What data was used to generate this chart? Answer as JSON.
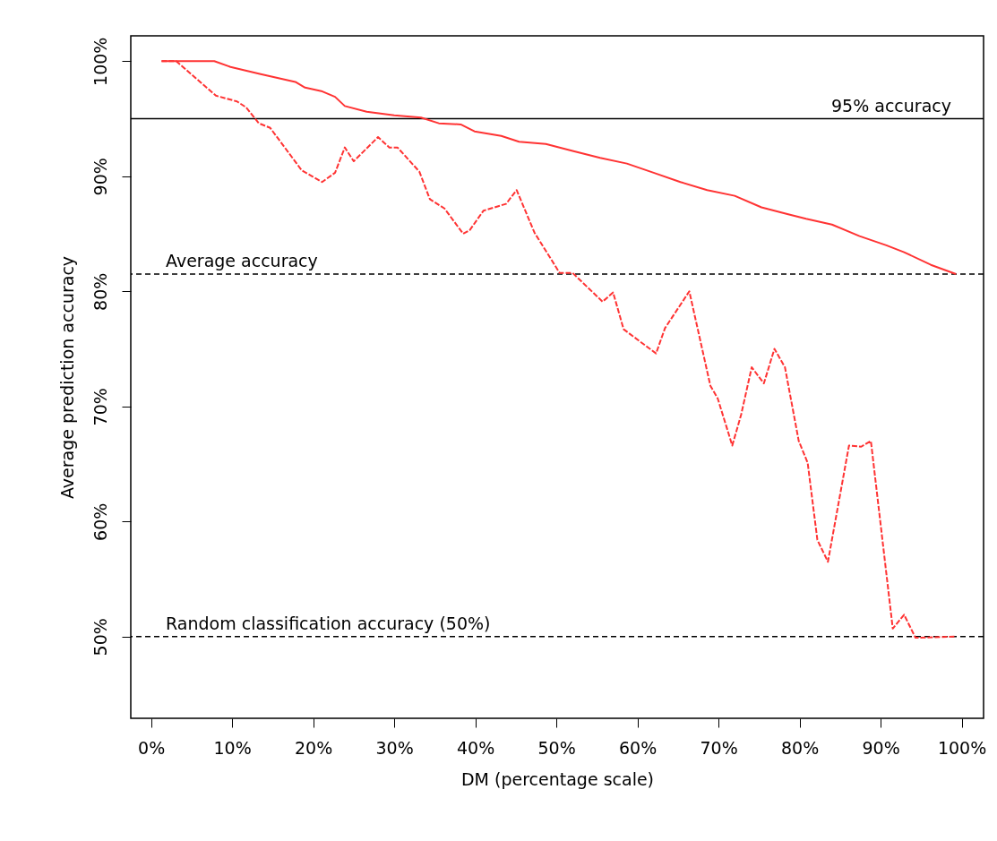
{
  "chart_data": {
    "type": "line",
    "xlabel": "DM (percentage scale)",
    "ylabel": "Average prediction accuracy",
    "xlim": [
      -2.5,
      102.7
    ],
    "ylim": [
      42.9,
      102.2
    ],
    "xticks": [
      {
        "value": 0,
        "label": "0%"
      },
      {
        "value": 10,
        "label": "10%"
      },
      {
        "value": 20,
        "label": "20%"
      },
      {
        "value": 30,
        "label": "30%"
      },
      {
        "value": 40,
        "label": "40%"
      },
      {
        "value": 50,
        "label": "50%"
      },
      {
        "value": 60,
        "label": "60%"
      },
      {
        "value": 70,
        "label": "70%"
      },
      {
        "value": 80,
        "label": "80%"
      },
      {
        "value": 90,
        "label": "90%"
      },
      {
        "value": 100,
        "label": "100%"
      }
    ],
    "yticks": [
      {
        "value": 50,
        "label": "50%"
      },
      {
        "value": 60,
        "label": "60%"
      },
      {
        "value": 70,
        "label": "70%"
      },
      {
        "value": 80,
        "label": "80%"
      },
      {
        "value": 90,
        "label": "90%"
      },
      {
        "value": 100,
        "label": "100%"
      }
    ],
    "marker": "none",
    "series": [
      {
        "color": "#ff3333",
        "line_style": "solid",
        "x": [
          1.3,
          7.8,
          9.8,
          13.4,
          17.8,
          19,
          21,
          22.7,
          23.9,
          26.6,
          30,
          33.3,
          35.5,
          38.2,
          39.9,
          43.2,
          45.4,
          48.7,
          52,
          55.4,
          58.7,
          62,
          65.3,
          68.6,
          72,
          75.3,
          78.6,
          80.8,
          84,
          87.4,
          90.7,
          92.9,
          96.2,
          99.3
        ],
        "values": [
          100,
          100,
          99.5,
          98.9,
          98.2,
          97.7,
          97.4,
          96.9,
          96.1,
          95.6,
          95.3,
          95.1,
          94.6,
          94.5,
          93.9,
          93.5,
          93,
          92.8,
          92.2,
          91.6,
          91.1,
          90.3,
          89.5,
          88.8,
          88.3,
          87.3,
          86.7,
          86.3,
          85.8,
          84.8,
          84,
          83.4,
          82.3,
          81.5
        ]
      },
      {
        "color": "#ff3333",
        "line_style": "dashed",
        "x": [
          1.3,
          3.1,
          8,
          10.6,
          11.7,
          13.3,
          14.7,
          18.6,
          21.1,
          22.7,
          23.9,
          25,
          28,
          29.4,
          30.4,
          33.1,
          34.4,
          36.2,
          38.5,
          39.3,
          41,
          43.8,
          45.1,
          47.3,
          50.4,
          52,
          55.7,
          57,
          58.3,
          62.3,
          63.4,
          66.4,
          69,
          69.9,
          71.7,
          72.8,
          74.1,
          75.6,
          76.9,
          78.2,
          79.9,
          81,
          82.2,
          83.5,
          86.1,
          87.6,
          88.8,
          91.5,
          92.9,
          94.3,
          99.3
        ],
        "values": [
          100,
          100,
          97,
          96.5,
          96,
          94.6,
          94.2,
          90.5,
          89.5,
          90.3,
          92.5,
          91.3,
          93.4,
          92.5,
          92.5,
          90.4,
          88,
          87.2,
          85,
          85.3,
          87,
          87.6,
          88.8,
          85.1,
          81.6,
          81.6,
          79.1,
          79.9,
          76.7,
          74.6,
          76.8,
          80,
          71.8,
          70.7,
          66.6,
          69.3,
          73.4,
          72,
          75,
          73.4,
          67,
          65.1,
          58.4,
          56.5,
          66.6,
          66.5,
          67,
          50.7,
          51.9,
          49.9,
          50
        ]
      }
    ],
    "ref_lines": [
      {
        "axis": "y",
        "value": 95,
        "label": "95% accuracy",
        "color": "#000000",
        "line_style": "solid"
      },
      {
        "axis": "y",
        "value": 81.5,
        "label": "Average accuracy",
        "color": "#000000",
        "line_style": "dashed"
      },
      {
        "axis": "y",
        "value": 50,
        "label": "Random classification accuracy (50%)",
        "color": "#000000",
        "line_style": "dashed"
      }
    ]
  }
}
